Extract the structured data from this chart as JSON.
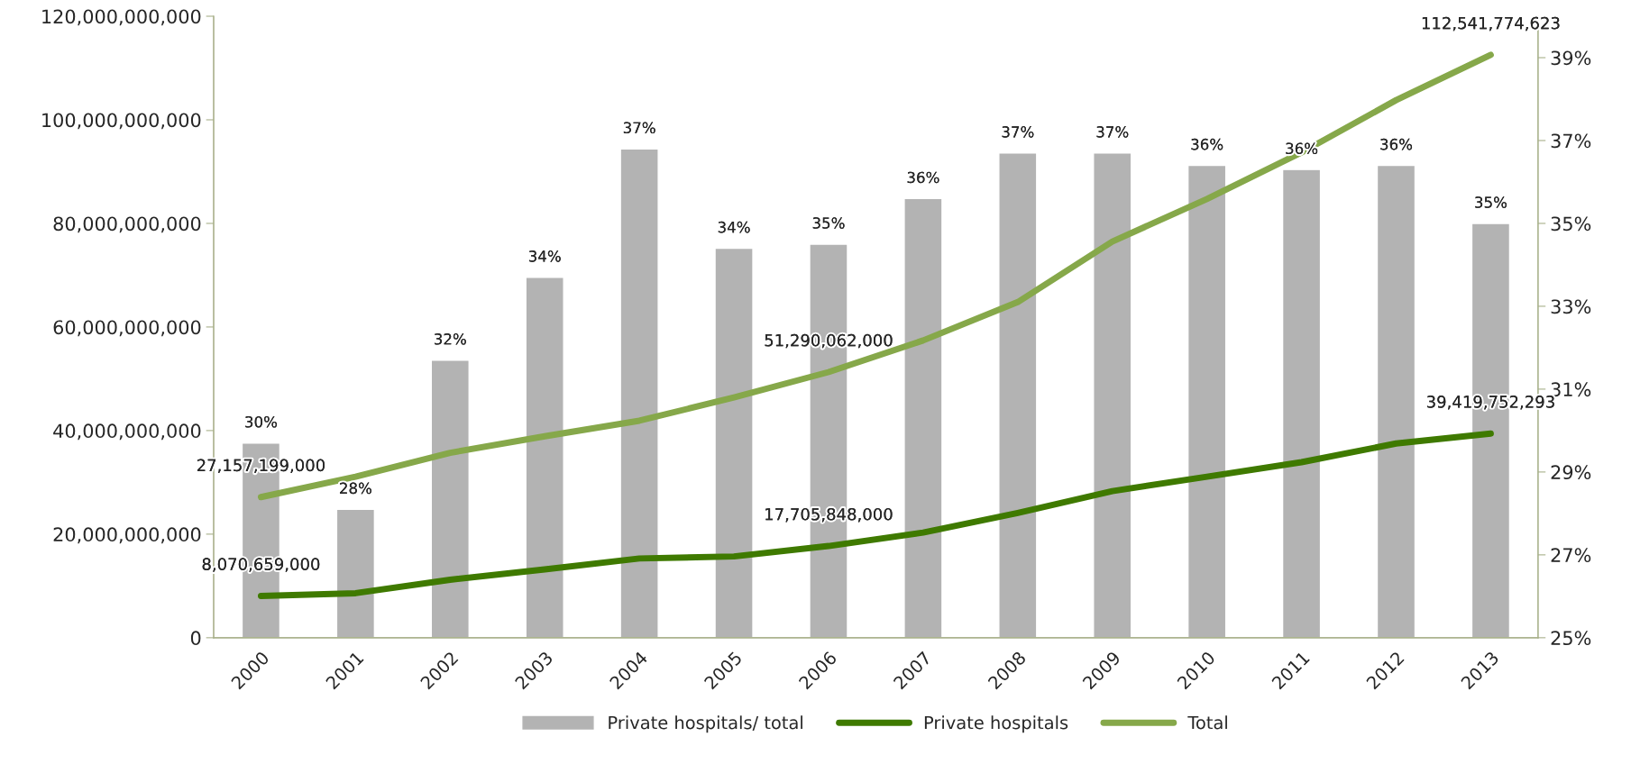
{
  "chart_data": {
    "type": "bar",
    "categories": [
      "2000",
      "2001",
      "2002",
      "2003",
      "2004",
      "2005",
      "2006",
      "2007",
      "2008",
      "2009",
      "2010",
      "2011",
      "2012",
      "2013"
    ],
    "series": [
      {
        "name": "Private hospitals/ total",
        "axis": "y2",
        "color": "#b3b3b3",
        "values": [
          29.7,
          28.1,
          31.7,
          33.7,
          36.8,
          34.4,
          34.5,
          35.6,
          36.7,
          36.7,
          36.4,
          36.3,
          36.4,
          35.0
        ],
        "value_labels": [
          "30%",
          "28%",
          "32%",
          "34%",
          "37%",
          "34%",
          "35%",
          "36%",
          "37%",
          "37%",
          "36%",
          "36%",
          "36%",
          "35%"
        ]
      },
      {
        "name": "Private hospitals",
        "type": "line",
        "color": "#3f7a00",
        "values": [
          8070659000,
          8600000000,
          11200000000,
          13200000000,
          15300000000,
          15700000000,
          17705848000,
          20300000000,
          24100000000,
          28300000000,
          31100000000,
          33900000000,
          37500000000,
          39419752293
        ],
        "value_labels": [
          "8,070,659,000",
          null,
          null,
          null,
          null,
          null,
          "17,705,848,000",
          null,
          null,
          null,
          null,
          null,
          null,
          "39,419,752,293"
        ]
      },
      {
        "name": "Total",
        "type": "line",
        "color": "#86a84a",
        "values": [
          27157199000,
          31100000000,
          35700000000,
          38900000000,
          41900000000,
          46400000000,
          51290062000,
          57400000000,
          64800000000,
          76500000000,
          84700000000,
          93700000000,
          103800000000,
          112541774623
        ],
        "value_labels": [
          "27,157,199,000",
          null,
          null,
          null,
          null,
          null,
          "51,290,062,000",
          null,
          null,
          null,
          null,
          null,
          null,
          "112,541,774,623"
        ]
      }
    ],
    "ylim": [
      0,
      120000000000
    ],
    "yticks": [
      {
        "value": 0,
        "label": "0"
      },
      {
        "value": 20000000000,
        "label": "20,000,000,000"
      },
      {
        "value": 40000000000,
        "label": "40,000,000,000"
      },
      {
        "value": 60000000000,
        "label": "60,000,000,000"
      },
      {
        "value": 80000000000,
        "label": "80,000,000,000"
      },
      {
        "value": 100000000000,
        "label": "100,000,000,000"
      },
      {
        "value": 120000000000,
        "label": "120,000,000,000"
      }
    ],
    "y2lim": [
      25,
      40
    ],
    "y2ticks": [
      {
        "value": 25,
        "label": "25%"
      },
      {
        "value": 27,
        "label": "27%"
      },
      {
        "value": 29,
        "label": "29%"
      },
      {
        "value": 31,
        "label": "31%"
      },
      {
        "value": 33,
        "label": "33%"
      },
      {
        "value": 35,
        "label": "35%"
      },
      {
        "value": 37,
        "label": "37%"
      },
      {
        "value": 39,
        "label": "39%"
      }
    ],
    "legend": "bottom",
    "grid": false
  }
}
